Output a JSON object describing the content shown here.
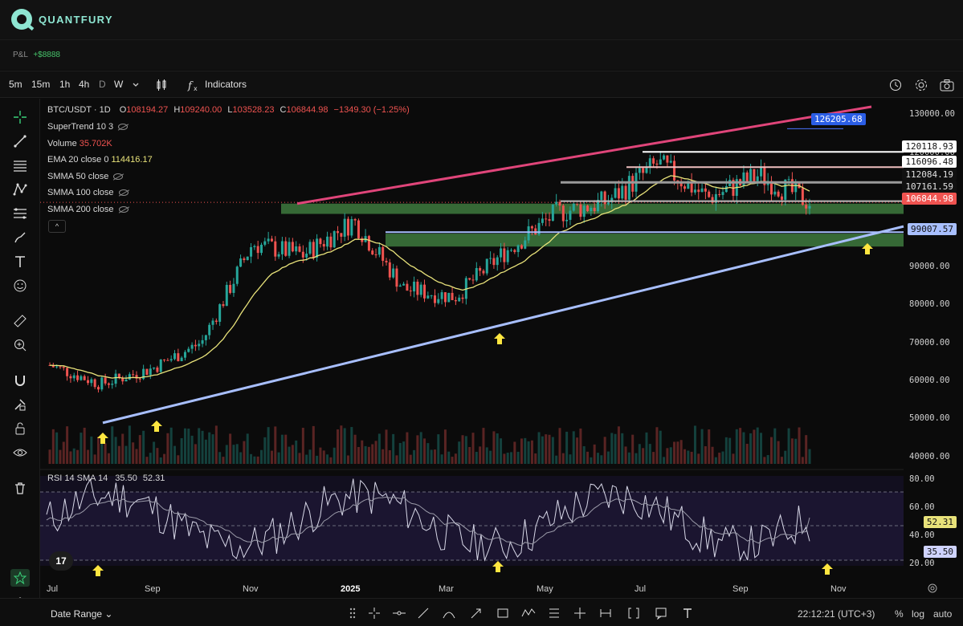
{
  "app": {
    "brand": "QUANTFURY"
  },
  "pnl": {
    "label": "P&L",
    "value": "+$8888"
  },
  "toolbar": {
    "timeframes": [
      "5m",
      "15m",
      "1h",
      "4h",
      "D",
      "W"
    ],
    "active_timeframe": "D",
    "indicators_label": "Indicators"
  },
  "legend": {
    "symbol": "BTC/USDT · 1D",
    "o_label": "O",
    "o": "108194.27",
    "h_label": "H",
    "h": "109240.00",
    "l_label": "L",
    "l": "103528.23",
    "c_label": "C",
    "c": "106844.98",
    "change": "−1349.30 (−1.25%)",
    "supertrend": "SuperTrend 10 3",
    "volume_label": "Volume",
    "volume": "35.702K",
    "ema_label": "EMA 20 close 0",
    "ema": "114416.17",
    "smma50": "SMMA 50 close",
    "smma100": "SMMA 100 close",
    "smma200": "SMMA 200 close",
    "collapse": "^"
  },
  "price_axis": [
    "130000.00",
    "120000.00",
    "110000.00",
    "100000.00",
    "90000.00",
    "80000.00",
    "70000.00",
    "60000.00",
    "50000.00",
    "40000.00"
  ],
  "price_tags": {
    "high_marker": "126205.68",
    "l1": "120118.93",
    "l2": "116096.48",
    "l3": "112084.19",
    "l4": "107161.59",
    "current": "106844.98",
    "trend": "99007.57"
  },
  "rsi": {
    "label": "RSI 14 SMA 14",
    "rsi_value": "35.50",
    "sma_value": "52.31",
    "axis": [
      "80.00",
      "60.00",
      "40.00",
      "20.00"
    ]
  },
  "time_axis": [
    "Jul",
    "Sep",
    "Nov",
    "2025",
    "Mar",
    "May",
    "Jul",
    "Sep",
    "Nov"
  ],
  "bottom": {
    "date_range": "Date Range",
    "clock": "22:12:21 (UTC+3)",
    "percent": "%",
    "log": "log",
    "auto": "auto"
  },
  "tv_logo": "17",
  "chart_data": {
    "type": "candlestick",
    "title": "BTC/USDT · 1D",
    "x": [
      "2024-07",
      "2024-08",
      "2024-09",
      "2024-10",
      "2024-11",
      "2024-12",
      "2025-01",
      "2025-02",
      "2025-03",
      "2025-04",
      "2025-05",
      "2025-06",
      "2025-07",
      "2025-08",
      "2025-09",
      "2025-10"
    ],
    "close_approx": [
      64000,
      59000,
      63000,
      70000,
      96000,
      93000,
      102000,
      84000,
      82000,
      94000,
      104000,
      107000,
      117000,
      108000,
      114000,
      106845
    ],
    "ylim": [
      38000,
      132000
    ],
    "levels": [
      126205.68,
      120118.93,
      116096.48,
      112084.19,
      107161.59,
      106844.98,
      99007.57
    ],
    "rsi_current": 35.5,
    "rsi_sma_current": 52.31,
    "rsi_ylim": [
      20,
      80
    ],
    "colors": {
      "up": "#26a69a",
      "down": "#ef5350",
      "ema": "#e8e27a",
      "resistance_line": "#e0457a",
      "support_line": "#a8bfff",
      "zone": "#3e7a3e"
    }
  }
}
